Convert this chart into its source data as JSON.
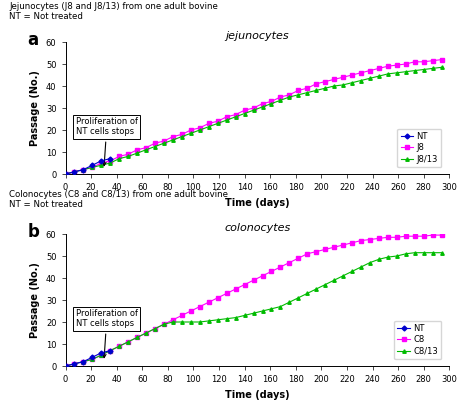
{
  "title_a": "jejunocytes",
  "title_b": "colonocytes",
  "header_a": "Jejunocytes (J8 and J8/13) from one adult bovine\nNT = Not treated",
  "header_b": "Colonocytes (C8 and C8/13) from one adult bovine\nNT = Not treated",
  "label_a": "a",
  "label_b": "b",
  "xlabel": "Time (days)",
  "ylabel": "Passage (No.)",
  "xlim": [
    0,
    300
  ],
  "ylim": [
    0,
    60
  ],
  "xticks": [
    0,
    20,
    40,
    60,
    80,
    100,
    120,
    140,
    160,
    180,
    200,
    220,
    240,
    260,
    280,
    300
  ],
  "yticks": [
    0,
    10,
    20,
    30,
    40,
    50,
    60
  ],
  "annotation_text": "Proliferation of\nNT cells stops",
  "color_NT": "#0000cd",
  "color_J8": "#ff00ff",
  "color_J813": "#00bb00",
  "color_C8": "#ff00ff",
  "color_C813": "#00bb00",
  "nt_days": [
    0,
    7,
    14,
    21,
    28,
    35
  ],
  "nt_passage": [
    0,
    1,
    2,
    4,
    6,
    7
  ],
  "j8_days": [
    0,
    7,
    14,
    21,
    28,
    35,
    42,
    49,
    56,
    63,
    70,
    77,
    84,
    91,
    98,
    105,
    112,
    119,
    126,
    133,
    140,
    147,
    154,
    161,
    168,
    175,
    182,
    189,
    196,
    203,
    210,
    217,
    224,
    231,
    238,
    245,
    252,
    259,
    266,
    273,
    280,
    287,
    294
  ],
  "j8_passage": [
    0,
    1,
    2,
    3,
    5,
    6,
    8,
    9,
    11,
    12,
    14,
    15,
    17,
    18,
    20,
    21,
    23,
    24,
    26,
    27,
    29,
    30,
    32,
    33,
    35,
    36,
    38,
    39,
    41,
    42,
    43,
    44,
    45,
    46,
    47,
    48,
    49,
    49.5,
    50,
    51,
    51,
    51.5,
    52
  ],
  "j813_days": [
    0,
    7,
    14,
    21,
    28,
    35,
    42,
    49,
    56,
    63,
    70,
    77,
    84,
    91,
    98,
    105,
    112,
    119,
    126,
    133,
    140,
    147,
    154,
    161,
    168,
    175,
    182,
    189,
    196,
    203,
    210,
    217,
    224,
    231,
    238,
    245,
    252,
    259,
    266,
    273,
    280,
    287,
    294
  ],
  "j813_passage": [
    0,
    1,
    2,
    3,
    4,
    5,
    7,
    8,
    9.5,
    11,
    12.5,
    14,
    15.5,
    17,
    18.5,
    20,
    21.5,
    23,
    24.5,
    26,
    27.5,
    29,
    30.5,
    32,
    33.5,
    35,
    36,
    37,
    38,
    39,
    40,
    40.5,
    41.5,
    42.5,
    43.5,
    44.5,
    45.5,
    46,
    46.5,
    47,
    47.5,
    48,
    48.5
  ],
  "c8_days": [
    0,
    7,
    14,
    21,
    28,
    35,
    42,
    49,
    56,
    63,
    70,
    77,
    84,
    91,
    98,
    105,
    112,
    119,
    126,
    133,
    140,
    147,
    154,
    161,
    168,
    175,
    182,
    189,
    196,
    203,
    210,
    217,
    224,
    231,
    238,
    245,
    252,
    259,
    266,
    273,
    280,
    287,
    294
  ],
  "c8_passage": [
    0,
    1,
    2,
    3,
    5,
    7,
    9,
    11,
    13,
    15,
    17,
    19,
    21,
    23,
    25,
    27,
    29,
    31,
    33,
    35,
    37,
    39,
    41,
    43,
    45,
    47,
    49,
    51,
    52,
    53,
    54,
    55,
    56,
    57,
    57.5,
    58,
    58.5,
    58.5,
    59,
    59,
    59,
    59.5,
    59.5
  ],
  "c813_days": [
    0,
    7,
    14,
    21,
    28,
    35,
    42,
    49,
    56,
    63,
    70,
    77,
    84,
    91,
    98,
    105,
    112,
    119,
    126,
    133,
    140,
    147,
    154,
    161,
    168,
    175,
    182,
    189,
    196,
    203,
    210,
    217,
    224,
    231,
    238,
    245,
    252,
    259,
    266,
    273,
    280,
    287,
    294
  ],
  "c813_passage": [
    0,
    1,
    2,
    3,
    5,
    7,
    9,
    11,
    13,
    15,
    17,
    19,
    20,
    20,
    20,
    20,
    20.5,
    21,
    21.5,
    22,
    23,
    24,
    25,
    26,
    27,
    29,
    31,
    33,
    35,
    37,
    39,
    41,
    43,
    45,
    47,
    48.5,
    49.5,
    50,
    51,
    51.5,
    51.5,
    51.5,
    51.5
  ]
}
